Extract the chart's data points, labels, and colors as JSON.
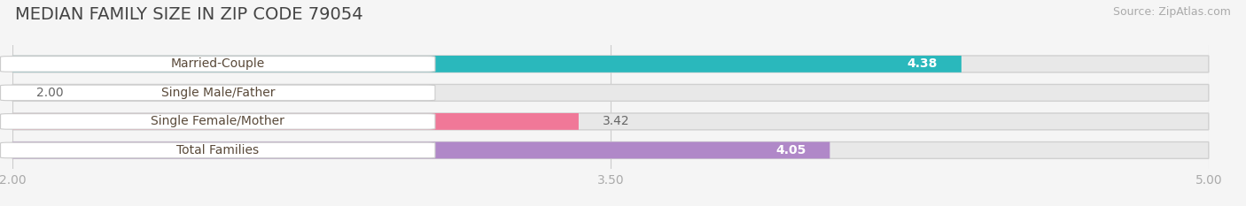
{
  "title": "MEDIAN FAMILY SIZE IN ZIP CODE 79054",
  "source": "Source: ZipAtlas.com",
  "categories": [
    "Married-Couple",
    "Single Male/Father",
    "Single Female/Mother",
    "Total Families"
  ],
  "values": [
    4.38,
    2.0,
    3.42,
    4.05
  ],
  "bar_colors": [
    "#2ab8bc",
    "#b0bfee",
    "#f07898",
    "#b088c8"
  ],
  "value_inside": [
    true,
    false,
    false,
    true
  ],
  "bar_bg_color": "#e8e8e8",
  "xlim": [
    2.0,
    5.0
  ],
  "xticks": [
    2.0,
    3.5,
    5.0
  ],
  "xticklabels": [
    "2.00",
    "3.50",
    "5.00"
  ],
  "title_fontsize": 14,
  "source_fontsize": 9,
  "bar_label_fontsize": 10,
  "category_fontsize": 10,
  "tick_fontsize": 10,
  "bar_height": 0.58,
  "background_color": "#f5f5f5",
  "label_pill_color": "#ffffff",
  "label_text_color": "#5a4a3a",
  "value_inside_color": "#ffffff",
  "value_outside_color": "#666666"
}
